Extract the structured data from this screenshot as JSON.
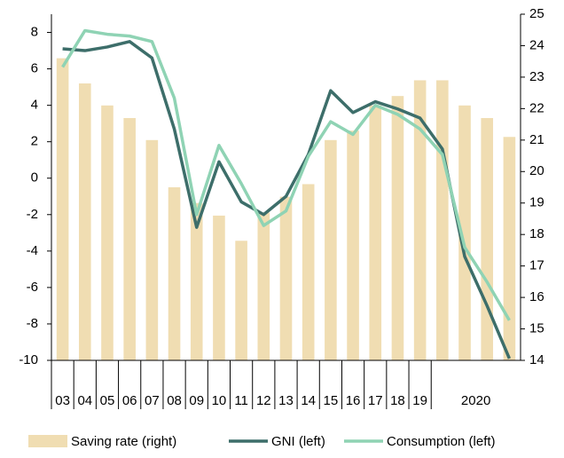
{
  "chart_data": {
    "type": "bar-line",
    "categories": [
      "03",
      "04",
      "05",
      "06",
      "07",
      "08",
      "09",
      "10",
      "11",
      "12",
      "13",
      "14",
      "15",
      "16",
      "17",
      "18",
      "19",
      null,
      "2020",
      null,
      null
    ],
    "series": [
      {
        "name": "Saving rate (right)",
        "type": "bar",
        "axis": "y2",
        "color": "#f0ddb2",
        "values": [
          23.6,
          22.8,
          22.1,
          21.7,
          21.0,
          19.5,
          19.0,
          18.6,
          17.8,
          18.7,
          19.2,
          19.6,
          21.0,
          21.3,
          22.1,
          22.4,
          22.9,
          22.9,
          22.1,
          21.7,
          21.1
        ]
      },
      {
        "name": "GNI (left)",
        "type": "line",
        "color": "#3d6e6a",
        "values": [
          7.1,
          7.0,
          7.2,
          7.5,
          6.6,
          2.7,
          -2.7,
          0.9,
          -1.3,
          -2.0,
          -1.0,
          1.3,
          4.8,
          3.6,
          4.2,
          3.8,
          3.3,
          1.6,
          -4.3,
          -7.0,
          -9.9
        ]
      },
      {
        "name": "Consumption (left)",
        "type": "line",
        "color": "#8fd3b4",
        "values": [
          6.1,
          8.1,
          7.9,
          7.8,
          7.5,
          4.4,
          -2.0,
          1.8,
          -0.3,
          -2.6,
          -1.8,
          1.2,
          3.1,
          2.4,
          4.0,
          3.5,
          2.7,
          1.3,
          -3.8,
          -5.7,
          -7.8
        ]
      }
    ],
    "ylim": [
      -10,
      9
    ],
    "yticks": [
      -10,
      -8,
      -6,
      -4,
      -2,
      0,
      2,
      4,
      6,
      8
    ],
    "y2lim": [
      14,
      25
    ],
    "y2ticks": [
      14,
      15,
      16,
      17,
      18,
      19,
      20,
      21,
      22,
      23,
      24,
      25
    ]
  }
}
